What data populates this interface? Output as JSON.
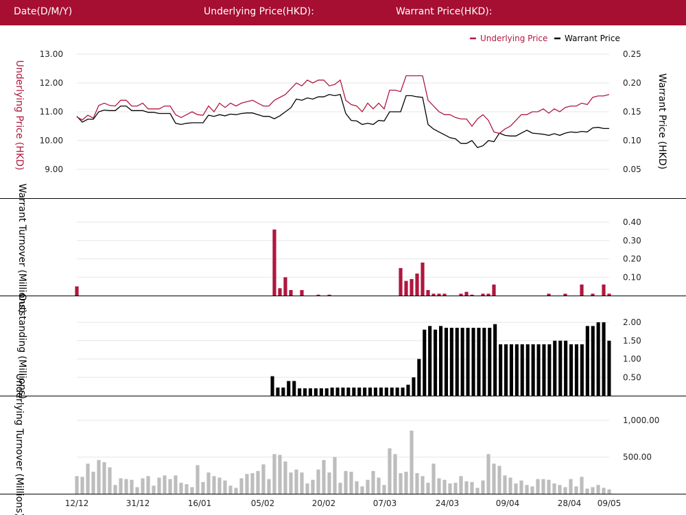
{
  "header": {
    "date_label": "Date(D/M/Y)",
    "underlying_label": "Underlying Price(HKD):",
    "warrant_label": "Warrant Price(HKD):"
  },
  "colors": {
    "header_bg": "#a60e32",
    "underlying": "#b0173f",
    "warrant": "#000000",
    "turnover_bar": "#b0173f",
    "outstanding_bar": "#000000",
    "underlying_turnover_bar": "#bdbdbd"
  },
  "chart_data": [
    {
      "type": "line",
      "legend": [
        "Underlying Price",
        "Warrant Price"
      ],
      "legend_position": "top-right",
      "left_axis": {
        "label": "Underlying Price (HKD)",
        "ticks": [
          "9.00",
          "10.00",
          "11.00",
          "12.00",
          "13.00"
        ],
        "range": [
          8.0,
          13.0
        ]
      },
      "right_axis": {
        "label": "Warrant Price (HKD)",
        "ticks": [
          "0.05",
          "0.10",
          "0.15",
          "0.20",
          "0.25"
        ],
        "range": [
          0.0,
          0.25
        ]
      },
      "grid": true,
      "series": [
        {
          "name": "Underlying Price",
          "axis": "left",
          "values": [
            10.82,
            10.72,
            10.88,
            10.78,
            11.22,
            11.3,
            11.22,
            11.2,
            11.4,
            11.4,
            11.2,
            11.2,
            11.3,
            11.1,
            11.1,
            11.1,
            11.2,
            11.2,
            10.9,
            10.8,
            10.9,
            11.0,
            10.9,
            10.88,
            11.2,
            11.0,
            11.3,
            11.15,
            11.3,
            11.2,
            11.3,
            11.35,
            11.4,
            11.3,
            11.2,
            11.2,
            11.4,
            11.5,
            11.6,
            11.8,
            12.0,
            11.9,
            12.1,
            12.0,
            12.1,
            12.1,
            11.9,
            11.95,
            12.1,
            11.4,
            11.25,
            11.2,
            11.0,
            11.3,
            11.1,
            11.3,
            11.1,
            11.75,
            11.75,
            11.7,
            12.25,
            12.25,
            12.25,
            12.25,
            11.4,
            11.2,
            11.0,
            10.9,
            10.9,
            10.8,
            10.75,
            10.75,
            10.5,
            10.75,
            10.9,
            10.7,
            10.3,
            10.25,
            10.4,
            10.5,
            10.7,
            10.9,
            10.9,
            11.0,
            11.0,
            11.1,
            10.95,
            11.1,
            11.0,
            11.15,
            11.2,
            11.2,
            11.3,
            11.25,
            11.5,
            11.55,
            11.55,
            11.6
          ]
        },
        {
          "name": "Warrant Price",
          "axis": "right",
          "values": [
            0.142,
            0.132,
            0.137,
            0.137,
            0.15,
            0.153,
            0.152,
            0.152,
            0.16,
            0.16,
            0.152,
            0.152,
            0.152,
            0.149,
            0.149,
            0.147,
            0.147,
            0.147,
            0.13,
            0.128,
            0.13,
            0.131,
            0.131,
            0.131,
            0.144,
            0.142,
            0.145,
            0.143,
            0.146,
            0.145,
            0.147,
            0.148,
            0.148,
            0.145,
            0.142,
            0.142,
            0.138,
            0.143,
            0.15,
            0.157,
            0.172,
            0.17,
            0.174,
            0.172,
            0.176,
            0.176,
            0.18,
            0.178,
            0.18,
            0.147,
            0.135,
            0.134,
            0.128,
            0.13,
            0.128,
            0.135,
            0.134,
            0.15,
            0.15,
            0.15,
            0.178,
            0.178,
            0.176,
            0.175,
            0.128,
            0.12,
            0.115,
            0.11,
            0.105,
            0.103,
            0.095,
            0.095,
            0.1,
            0.088,
            0.091,
            0.1,
            0.098,
            0.113,
            0.109,
            0.108,
            0.108,
            0.113,
            0.118,
            0.113,
            0.112,
            0.111,
            0.109,
            0.112,
            0.109,
            0.113,
            0.115,
            0.114,
            0.116,
            0.115,
            0.122,
            0.123,
            0.121,
            0.121
          ]
        }
      ]
    },
    {
      "type": "bar",
      "title_axis": "Warrant Turnover (Millions)",
      "right_axis": {
        "ticks": [
          "0.10",
          "0.20",
          "0.30",
          "0.40"
        ],
        "range": [
          0.0,
          0.45
        ]
      },
      "grid": true,
      "values": [
        0.05,
        0,
        0,
        0,
        0,
        0,
        0,
        0,
        0,
        0,
        0,
        0,
        0,
        0,
        0,
        0,
        0,
        0,
        0,
        0,
        0,
        0,
        0,
        0,
        0,
        0,
        0,
        0,
        0,
        0,
        0,
        0,
        0,
        0,
        0,
        0,
        0.36,
        0.04,
        0.1,
        0.03,
        0,
        0.03,
        0,
        0,
        0.005,
        0,
        0.005,
        0,
        0,
        0,
        0,
        0,
        0,
        0,
        0,
        0,
        0,
        0,
        0,
        0.15,
        0.08,
        0.09,
        0.12,
        0.18,
        0.03,
        0.01,
        0.01,
        0.01,
        0,
        0,
        0.01,
        0.02,
        0.005,
        0,
        0.01,
        0.01,
        0.06,
        0,
        0,
        0,
        0,
        0,
        0,
        0,
        0,
        0,
        0.01,
        0,
        0,
        0.01,
        0,
        0,
        0.06,
        0,
        0.01,
        0,
        0.06,
        0.01
      ]
    },
    {
      "type": "bar",
      "title_axis": "Outstanding (Millions)",
      "right_axis": {
        "ticks": [
          "0.50",
          "1.00",
          "1.50",
          "2.00"
        ],
        "range": [
          0.0,
          2.3
        ]
      },
      "grid": true,
      "values": [
        0,
        0,
        0,
        0,
        0,
        0,
        0,
        0,
        0,
        0,
        0,
        0,
        0,
        0,
        0,
        0,
        0,
        0,
        0,
        0,
        0,
        0,
        0,
        0,
        0,
        0,
        0,
        0,
        0,
        0,
        0,
        0,
        0,
        0,
        0,
        0,
        0.53,
        0.22,
        0.22,
        0.4,
        0.4,
        0.2,
        0.2,
        0.2,
        0.2,
        0.2,
        0.2,
        0.22,
        0.22,
        0.22,
        0.22,
        0.22,
        0.22,
        0.22,
        0.22,
        0.22,
        0.22,
        0.22,
        0.22,
        0.22,
        0.22,
        0.3,
        0.5,
        1.0,
        1.8,
        1.9,
        1.8,
        1.9,
        1.85,
        1.85,
        1.85,
        1.85,
        1.85,
        1.85,
        1.85,
        1.85,
        1.85,
        1.95,
        1.4,
        1.4,
        1.4,
        1.4,
        1.4,
        1.4,
        1.4,
        1.4,
        1.4,
        1.4,
        1.5,
        1.5,
        1.5,
        1.4,
        1.4,
        1.4,
        1.9,
        1.9,
        2.0,
        2.0,
        1.5
      ]
    },
    {
      "type": "bar",
      "title_axis": "Underlying Turnover (Millions)",
      "right_axis": {
        "ticks": [
          "500.00",
          "1,000.00"
        ],
        "range": [
          0,
          1150
        ]
      },
      "grid": true,
      "x_ticks": [
        "12/12",
        "31/12",
        "16/01",
        "05/02",
        "20/02",
        "07/03",
        "24/03",
        "09/04",
        "28/04",
        "09/05"
      ],
      "values": [
        240,
        230,
        410,
        300,
        460,
        430,
        360,
        120,
        210,
        200,
        190,
        90,
        210,
        240,
        110,
        220,
        250,
        200,
        250,
        150,
        130,
        90,
        390,
        160,
        290,
        240,
        220,
        180,
        110,
        80,
        210,
        270,
        280,
        310,
        400,
        200,
        540,
        530,
        440,
        290,
        330,
        290,
        140,
        190,
        330,
        460,
        290,
        500,
        150,
        310,
        300,
        170,
        100,
        190,
        310,
        220,
        120,
        620,
        540,
        280,
        300,
        860,
        280,
        240,
        150,
        410,
        210,
        190,
        140,
        150,
        240,
        170,
        160,
        80,
        180,
        540,
        410,
        380,
        250,
        220,
        140,
        180,
        120,
        100,
        200,
        200,
        190,
        140,
        120,
        90,
        200,
        100,
        230,
        70,
        90,
        120,
        80,
        60
      ]
    }
  ]
}
